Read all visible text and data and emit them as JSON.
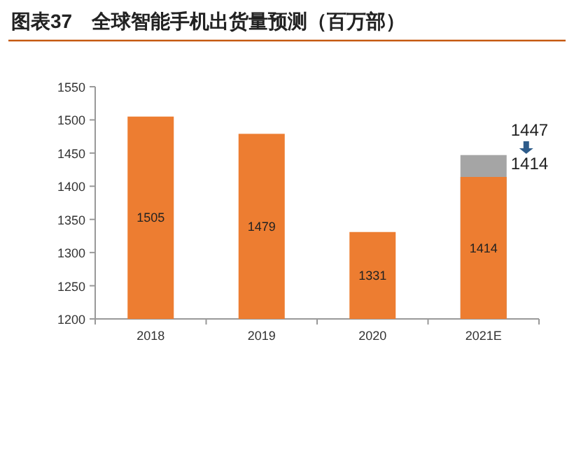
{
  "chart_data": {
    "type": "bar",
    "title": "图表37　全球智能手机出货量预测（百万部）",
    "categories": [
      "2018",
      "2019",
      "2020",
      "2021E"
    ],
    "series": [
      {
        "color": "#a5a5a5",
        "values": [
          null,
          null,
          null,
          1447
        ]
      },
      {
        "color": "#ed7d31",
        "values": [
          1505,
          1479,
          1331,
          1414
        ],
        "value_labels": [
          "1505",
          "1479",
          "1331",
          "1414"
        ]
      }
    ],
    "ylim": [
      1200,
      1550
    ],
    "yticks": [
      1200,
      1250,
      1300,
      1350,
      1400,
      1450,
      1500,
      1550
    ],
    "annotations": [
      "1447",
      "1414"
    ]
  }
}
